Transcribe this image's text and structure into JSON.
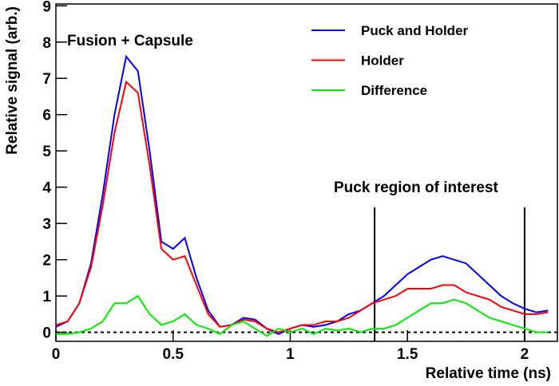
{
  "chart_data": {
    "type": "line",
    "x_label": "Relative time (ns)",
    "y_label": "Relative signal (arb.)",
    "annotations": [
      "Fusion + Capsule",
      "Puck region of interest"
    ],
    "markers_x": [
      1.36,
      2.0
    ],
    "reference_y": 0,
    "xlim": [
      0,
      2.14
    ],
    "ylim": [
      -0.25,
      9.05
    ],
    "xticks": [
      0,
      0.5,
      1,
      1.5,
      2
    ],
    "yticks": [
      0,
      1,
      2,
      3,
      4,
      5,
      6,
      7,
      8,
      9
    ],
    "legend": "top-right",
    "x": [
      0,
      0.05,
      0.1,
      0.15,
      0.2,
      0.25,
      0.3,
      0.35,
      0.4,
      0.45,
      0.5,
      0.55,
      0.6,
      0.65,
      0.7,
      0.75,
      0.8,
      0.85,
      0.9,
      0.95,
      1.0,
      1.05,
      1.1,
      1.15,
      1.2,
      1.25,
      1.3,
      1.35,
      1.4,
      1.45,
      1.5,
      1.55,
      1.6,
      1.65,
      1.7,
      1.75,
      1.8,
      1.85,
      1.9,
      1.95,
      2.0,
      2.05,
      2.1
    ],
    "series": [
      {
        "name": "Puck and Holder",
        "color": "#0000ff",
        "values": [
          0.15,
          0.3,
          0.8,
          1.9,
          3.8,
          6.0,
          7.6,
          7.2,
          5.0,
          2.5,
          2.3,
          2.6,
          1.5,
          0.6,
          0.15,
          0.2,
          0.4,
          0.35,
          0.1,
          -0.05,
          0.1,
          0.2,
          0.15,
          0.2,
          0.3,
          0.5,
          0.6,
          0.8,
          1.0,
          1.3,
          1.6,
          1.8,
          2.0,
          2.1,
          2.0,
          1.9,
          1.6,
          1.3,
          1.0,
          0.8,
          0.65,
          0.55,
          0.6
        ]
      },
      {
        "name": "Holder",
        "color": "#ff0000",
        "values": [
          0.2,
          0.3,
          0.8,
          1.8,
          3.5,
          5.5,
          6.9,
          6.6,
          4.6,
          2.3,
          2.0,
          2.1,
          1.3,
          0.5,
          0.15,
          0.2,
          0.35,
          0.3,
          0.1,
          0,
          0.1,
          0.2,
          0.2,
          0.3,
          0.3,
          0.4,
          0.6,
          0.8,
          0.9,
          1.0,
          1.2,
          1.2,
          1.2,
          1.3,
          1.3,
          1.1,
          1.0,
          0.9,
          0.7,
          0.6,
          0.5,
          0.5,
          0.55
        ]
      },
      {
        "name": "Difference",
        "color": "#00ee00",
        "values": [
          -0.05,
          -0.05,
          0.0,
          0.1,
          0.3,
          0.8,
          0.8,
          1.0,
          0.5,
          0.2,
          0.3,
          0.5,
          0.2,
          0.1,
          -0.05,
          0.2,
          0.3,
          0.1,
          -0.1,
          0.1,
          0.0,
          0.1,
          -0.05,
          0.1,
          0.05,
          0.1,
          0.0,
          0.1,
          0.1,
          0.2,
          0.4,
          0.6,
          0.8,
          0.8,
          0.9,
          0.8,
          0.6,
          0.4,
          0.3,
          0.2,
          0.1,
          0.0,
          0.0
        ]
      }
    ]
  }
}
